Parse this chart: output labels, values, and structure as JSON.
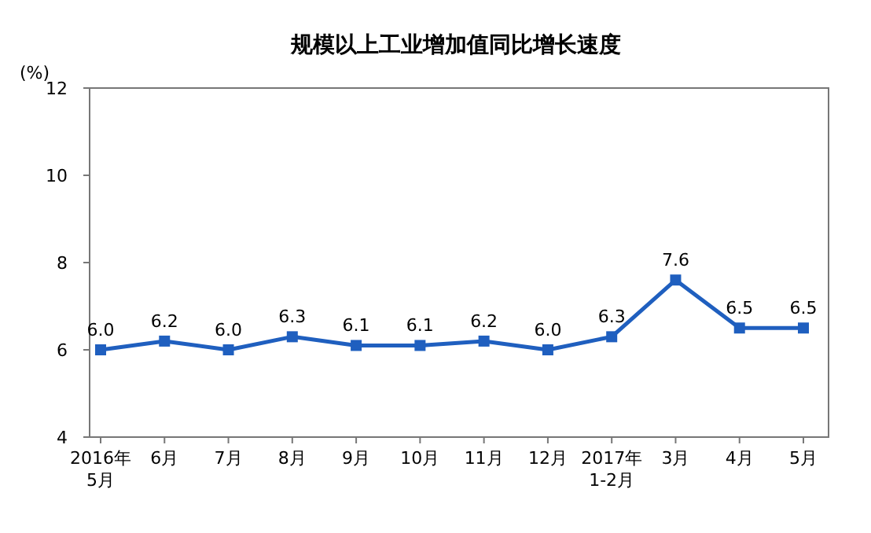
{
  "chart_data": {
    "type": "line",
    "title": "规模以上工业增加值同比增长速度",
    "ylabel": "(%)",
    "categories": [
      "2016年\n5月",
      "6月",
      "7月",
      "8月",
      "9月",
      "10月",
      "11月",
      "12月",
      "2017年\n1-2月",
      "3月",
      "4月",
      "5月"
    ],
    "series": [
      {
        "color": "#1f5fbf",
        "values": [
          6.0,
          6.2,
          6.0,
          6.3,
          6.1,
          6.1,
          6.2,
          6.0,
          6.3,
          7.6,
          6.5,
          6.5
        ],
        "value_labels": [
          "6.0",
          "6.2",
          "6.0",
          "6.3",
          "6.1",
          "6.1",
          "6.2",
          "6.0",
          "6.3",
          "7.6",
          "6.5",
          "6.5"
        ]
      }
    ],
    "ylim": [
      4,
      12
    ],
    "yticks": [
      4,
      6,
      8,
      10,
      12
    ],
    "marker": "square",
    "grid": false
  }
}
